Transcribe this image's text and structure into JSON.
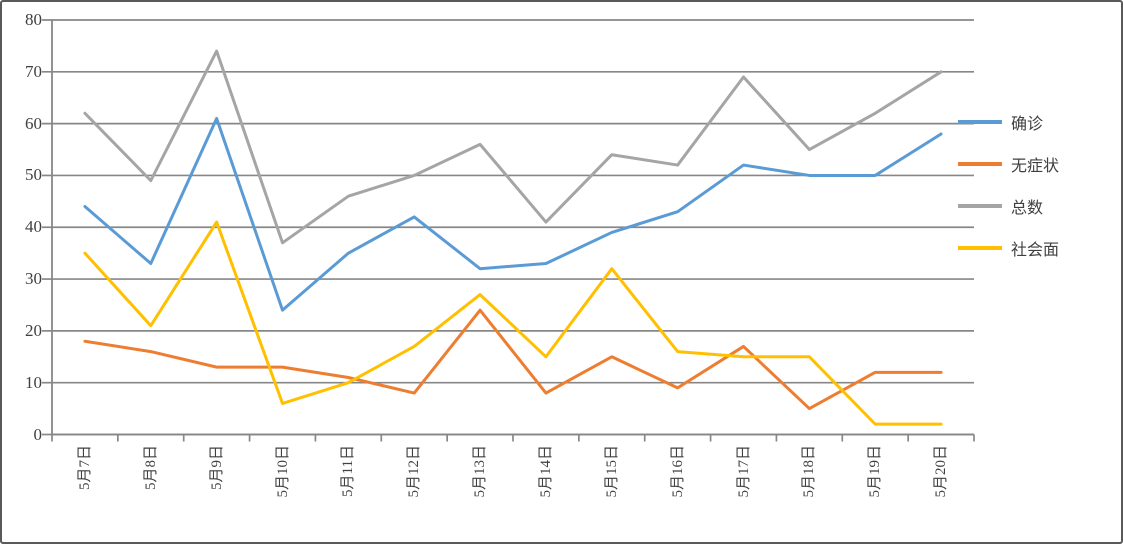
{
  "chart_data": {
    "type": "line",
    "title": "",
    "categories": [
      "5月7日",
      "5月8日",
      "5月9日",
      "5月10日",
      "5月11日",
      "5月12日",
      "5月13日",
      "5月14日",
      "5月15日",
      "5月16日",
      "5月17日",
      "5月18日",
      "5月19日",
      "5月20日"
    ],
    "series": [
      {
        "name": "确诊",
        "color": "#5B9BD5",
        "values": [
          44,
          33,
          61,
          24,
          35,
          42,
          32,
          33,
          39,
          43,
          52,
          50,
          50,
          58
        ]
      },
      {
        "name": "无症状",
        "color": "#ED7D31",
        "values": [
          18,
          16,
          13,
          13,
          11,
          8,
          24,
          8,
          15,
          9,
          17,
          5,
          12,
          12
        ]
      },
      {
        "name": "总数",
        "color": "#A5A5A5",
        "values": [
          62,
          49,
          74,
          37,
          46,
          50,
          56,
          41,
          54,
          52,
          69,
          55,
          62,
          70
        ]
      },
      {
        "name": "社会面",
        "color": "#FFC000",
        "values": [
          35,
          21,
          41,
          6,
          10,
          17,
          27,
          15,
          32,
          16,
          15,
          15,
          2,
          2
        ]
      }
    ],
    "ylim": [
      0,
      80
    ],
    "yticks": [
      "0",
      "10",
      "20",
      "30",
      "40",
      "50",
      "60",
      "70",
      "80"
    ],
    "xlabel": "",
    "ylabel": "",
    "grid": "horizontal",
    "legend_position": "right"
  },
  "style": {
    "grid_color": "#878787",
    "axis_color": "#878787",
    "text_color": "#404040",
    "frame_border_color": "#595959",
    "background": "#FFFFFF"
  }
}
